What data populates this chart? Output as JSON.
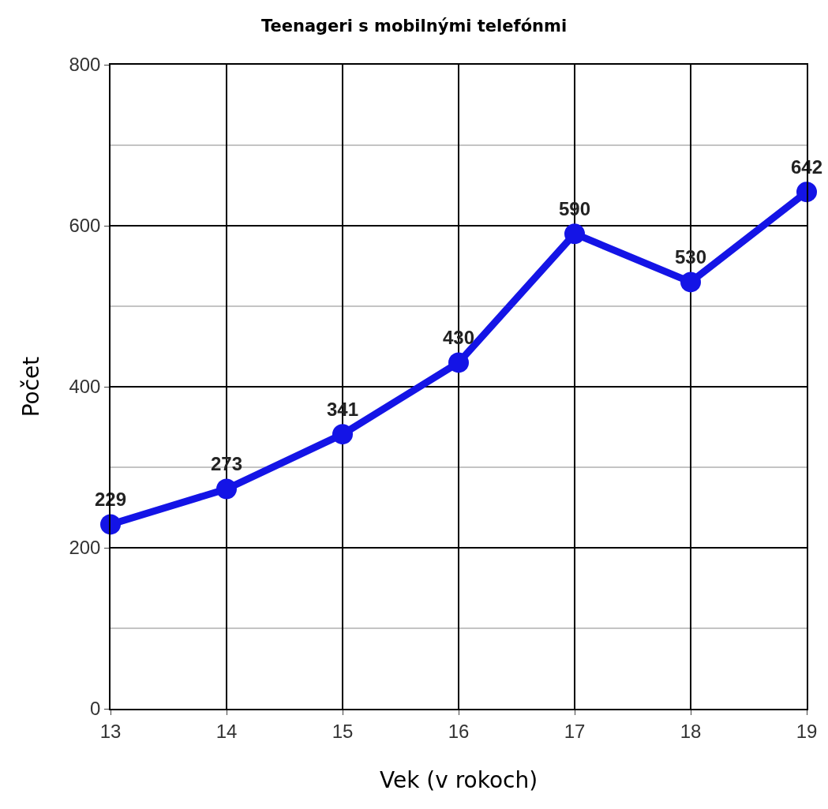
{
  "chart_data": {
    "type": "line",
    "title": "Teenageri s mobilnými telefónmi",
    "xlabel": "Vek (v rokoch)",
    "ylabel": "Počet",
    "x": [
      13,
      14,
      15,
      16,
      17,
      18,
      19
    ],
    "series": [
      {
        "color": "#1414e6",
        "values": [
          229,
          273,
          341,
          430,
          590,
          530,
          642
        ]
      }
    ],
    "xlim": [
      13,
      19
    ],
    "xticks": [
      13,
      14,
      15,
      16,
      17,
      18,
      19
    ],
    "ylim": [
      0,
      800
    ],
    "yticks": [
      0,
      200,
      400,
      600,
      800
    ],
    "grid": true,
    "marker": "circle",
    "line_style": "solid",
    "data_labels": true
  }
}
